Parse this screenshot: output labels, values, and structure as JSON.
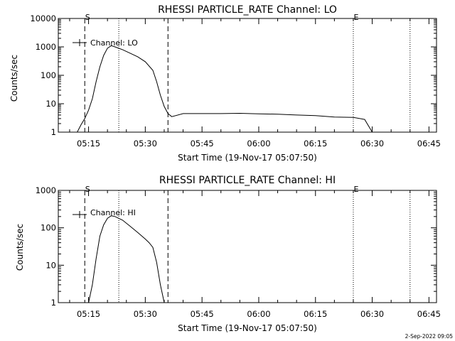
{
  "chart_data": [
    {
      "type": "line",
      "title": "RHESSI PARTICLE_RATE Channel: LO",
      "xlabel": "Start Time (19-Nov-17 05:07:50)",
      "ylabel": "Counts/sec",
      "y_scale": "log",
      "ylim": [
        1,
        10000
      ],
      "y_ticks": [
        1,
        10,
        100,
        1000,
        10000
      ],
      "y_tick_labels": [
        "1",
        "10",
        "100",
        "1000",
        "10000"
      ],
      "xlim": [
        "05:07",
        "06:47"
      ],
      "x_ticks": [
        "05:15",
        "05:30",
        "05:45",
        "06:00",
        "06:15",
        "06:30",
        "06:45"
      ],
      "legend": {
        "label": "Channel: LO",
        "position": "top-left"
      },
      "markers": [
        {
          "label": "S",
          "time": "05:14",
          "style": "dashed"
        },
        {
          "label": "",
          "time": "05:36",
          "style": "dashed"
        },
        {
          "label": "E",
          "time": "06:25",
          "style": "dotted"
        },
        {
          "label": "",
          "time": "05:23",
          "style": "dotted"
        },
        {
          "label": "",
          "time": "06:40",
          "style": "dotted"
        }
      ],
      "series": [
        {
          "name": "Channel: LO",
          "x": [
            "05:12",
            "05:13",
            "05:14",
            "05:15",
            "05:16",
            "05:17",
            "05:18",
            "05:19",
            "05:20",
            "05:21",
            "05:22",
            "05:24",
            "05:26",
            "05:28",
            "05:30",
            "05:32",
            "05:33",
            "05:34",
            "05:35",
            "05:36",
            "05:37",
            "05:40",
            "05:45",
            "05:50",
            "05:55",
            "06:00",
            "06:05",
            "06:10",
            "06:15",
            "06:20",
            "06:25",
            "06:28",
            "06:30"
          ],
          "y": [
            1,
            1.8,
            3,
            6,
            15,
            60,
            200,
            500,
            900,
            1100,
            1000,
            800,
            600,
            450,
            300,
            150,
            60,
            20,
            8,
            4.5,
            3.5,
            4.5,
            4.5,
            4.5,
            4.6,
            4.4,
            4.3,
            4,
            3.8,
            3.4,
            3.3,
            2.8,
            1
          ]
        }
      ]
    },
    {
      "type": "line",
      "title": "RHESSI PARTICLE_RATE Channel: HI",
      "xlabel": "Start Time (19-Nov-17 05:07:50)",
      "ylabel": "Counts/sec",
      "y_scale": "log",
      "ylim": [
        1,
        1000
      ],
      "y_ticks": [
        1,
        10,
        100,
        1000
      ],
      "y_tick_labels": [
        "1",
        "10",
        "100",
        "1000"
      ],
      "xlim": [
        "05:07",
        "06:47"
      ],
      "x_ticks": [
        "05:15",
        "05:30",
        "05:45",
        "06:00",
        "06:15",
        "06:30",
        "06:45"
      ],
      "legend": {
        "label": "Channel: HI",
        "position": "top-left"
      },
      "markers": [
        {
          "label": "S",
          "time": "05:14",
          "style": "dashed"
        },
        {
          "label": "",
          "time": "05:36",
          "style": "dashed"
        },
        {
          "label": "E",
          "time": "06:25",
          "style": "dotted"
        },
        {
          "label": "",
          "time": "05:23",
          "style": "dotted"
        },
        {
          "label": "",
          "time": "06:40",
          "style": "dotted"
        }
      ],
      "series": [
        {
          "name": "Channel: HI",
          "x": [
            "05:15",
            "05:16",
            "05:17",
            "05:18",
            "05:19",
            "05:20",
            "05:21",
            "05:22",
            "05:24",
            "05:26",
            "05:28",
            "05:30",
            "05:31",
            "05:32",
            "05:33",
            "05:34",
            "05:35"
          ],
          "y": [
            1,
            3,
            15,
            60,
            120,
            180,
            210,
            200,
            160,
            110,
            75,
            50,
            40,
            30,
            12,
            3,
            1
          ]
        }
      ]
    }
  ],
  "footer": {
    "timestamp": "2-Sep-2022 09:05"
  }
}
